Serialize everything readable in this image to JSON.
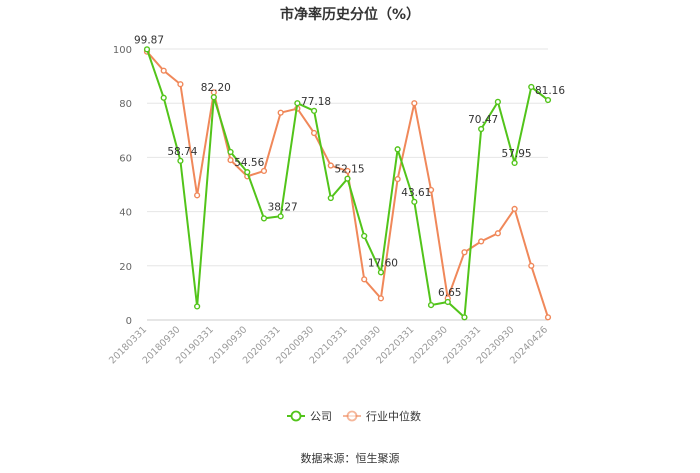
{
  "chart_data": {
    "type": "line",
    "title": "市净率历史分位（%）",
    "source": "数据来源：恒生聚源",
    "ylim": [
      0,
      100
    ],
    "yticks": [
      0,
      20,
      40,
      60,
      80,
      100
    ],
    "grid": true,
    "legend_position": "bottom",
    "x_labels": [
      "20180331",
      "20180930",
      "20190331",
      "20190930",
      "20200331",
      "20200930",
      "20210331",
      "20210930",
      "20220331",
      "20220930",
      "20230331",
      "20230930",
      "20240426"
    ],
    "series": [
      {
        "name": "公司",
        "color": "#52c41a",
        "values": [
          99.87,
          82,
          58.74,
          5,
          82.2,
          62,
          54.56,
          37.5,
          38.27,
          80,
          77.18,
          45,
          52.15,
          31,
          17.6,
          63,
          43.61,
          5.5,
          6.65,
          1,
          70.47,
          80.5,
          57.95,
          86,
          81.16
        ],
        "labels": [
          "99.87",
          "",
          "58.74",
          "",
          "82.20",
          "",
          "54.56",
          "",
          "38.27",
          "",
          "77.18",
          "",
          "52.15",
          "",
          "17.60",
          "",
          "43.61",
          "",
          "6.65",
          "",
          "70.47",
          "",
          "57.95",
          "",
          "81.16"
        ]
      },
      {
        "name": "行业中位数",
        "color": "#f0885a",
        "values": [
          99,
          92,
          87,
          46,
          84,
          59,
          53,
          55,
          76.5,
          78,
          69,
          57,
          55,
          15,
          8,
          52,
          80,
          48,
          8,
          25,
          29,
          32,
          41,
          20,
          1
        ]
      }
    ]
  }
}
